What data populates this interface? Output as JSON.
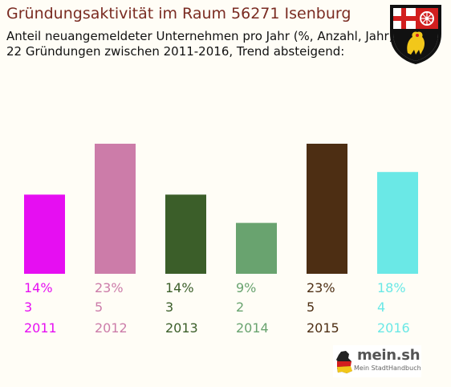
{
  "title": "Gründungsaktivität im Raum 56271 Isenburg",
  "subtitle_line1": "Anteil neuangemeldeter Unternehmen pro Jahr (%, Anzahl, Jahr)",
  "subtitle_line2": "22 Gründungen zwischen 2011-2016, Trend absteigend:",
  "logo": {
    "name": "mein.sh",
    "tagline": "Mein StadtHandbuch"
  },
  "crest_icon": "rhineland-palatinate-coat-of-arms-icon",
  "chart_data": {
    "type": "bar",
    "categories": [
      "2011",
      "2012",
      "2013",
      "2014",
      "2015",
      "2016"
    ],
    "values": [
      14,
      23,
      14,
      9,
      23,
      18
    ],
    "percent_labels": [
      "14%",
      "23%",
      "14%",
      "9%",
      "23%",
      "18%"
    ],
    "counts": [
      3,
      5,
      3,
      2,
      5,
      4
    ],
    "colors": [
      "#e60ef2",
      "#cc7ca9",
      "#3b5e29",
      "#69a36f",
      "#4d2e13",
      "#6ae8e6"
    ],
    "ylim": [
      0,
      23
    ],
    "grid": false,
    "title": "Gründungsaktivität im Raum 56271 Isenburg"
  }
}
